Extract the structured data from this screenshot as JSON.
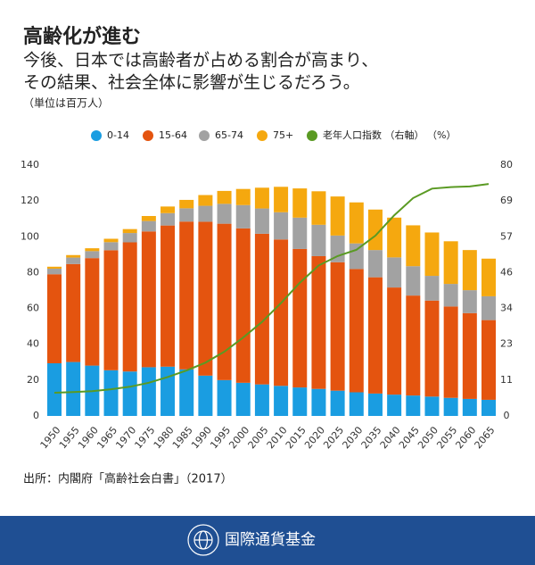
{
  "chart_data": {
    "type": "bar",
    "stacked": true,
    "title": "高齢化が進む",
    "subtitle": [
      "今後、日本では高齢者が占める割合が高まり、",
      "その結果、社会全体に影響が生じるだろう。"
    ],
    "unit_note": "（単位は百万人）",
    "categories": [
      "1950",
      "1955",
      "1960",
      "1965",
      "1970",
      "1975",
      "1980",
      "1985",
      "1990",
      "1995",
      "2000",
      "2005",
      "2010",
      "2015",
      "2020",
      "2025",
      "2030",
      "2035",
      "2040",
      "2045",
      "2050",
      "2055",
      "2060",
      "2065"
    ],
    "series": [
      {
        "name": "0-14",
        "color": "#1a9de1",
        "values": [
          29.4,
          30.1,
          28.1,
          25.5,
          24.8,
          27.2,
          27.5,
          26.0,
          22.5,
          20.0,
          18.5,
          17.6,
          16.8,
          15.9,
          15.1,
          14.1,
          13.2,
          12.5,
          11.9,
          11.4,
          10.8,
          10.1,
          9.5,
          9.0
        ]
      },
      {
        "name": "15-64",
        "color": "#e4540f",
        "values": [
          49.7,
          54.7,
          60.0,
          67.0,
          72.1,
          75.8,
          78.8,
          82.5,
          85.9,
          87.3,
          86.2,
          84.1,
          81.7,
          77.3,
          74.1,
          71.7,
          68.8,
          64.9,
          59.8,
          55.8,
          53.6,
          51.0,
          47.9,
          44.5
        ]
      },
      {
        "name": "65-74",
        "color": "#a2a2a2",
        "values": [
          3.1,
          3.6,
          3.9,
          4.5,
          5.2,
          5.8,
          6.9,
          7.4,
          8.9,
          11.1,
          13.0,
          14.1,
          15.2,
          17.5,
          17.5,
          14.9,
          14.3,
          15.2,
          16.8,
          16.4,
          13.8,
          12.6,
          12.8,
          13.3
        ]
      },
      {
        "name": "75+",
        "color": "#f5a80f",
        "values": [
          1.1,
          1.4,
          1.6,
          1.9,
          2.2,
          2.8,
          3.7,
          4.7,
          6.0,
          7.2,
          9.0,
          11.6,
          14.2,
          16.3,
          18.7,
          21.8,
          22.9,
          22.6,
          22.2,
          22.8,
          24.2,
          23.8,
          22.4,
          21.0
        ]
      },
      {
        "name": "老年人口指数 （右軸） （%）",
        "type": "line",
        "axis": "y2",
        "color": "#5a9a23",
        "values": [
          7.4,
          7.6,
          7.9,
          8.5,
          9.3,
          10.6,
          12.4,
          14.5,
          17.0,
          20.5,
          25.0,
          30.0,
          36.0,
          42.5,
          48.0,
          51.0,
          53.0,
          57.5,
          64.0,
          69.5,
          72.5,
          73.0,
          73.2,
          74.0
        ]
      }
    ],
    "ylim": [
      0,
      140
    ],
    "yticks": [
      0,
      20,
      40,
      60,
      80,
      100,
      120,
      140
    ],
    "y2lim": [
      0,
      80
    ],
    "y2ticks": [
      0,
      {
        "value": 11.43,
        "label": "11"
      },
      {
        "value": 22.86,
        "label": "23"
      },
      {
        "value": 34.29,
        "label": "34"
      },
      {
        "value": 45.71,
        "label": "46"
      },
      {
        "value": 57.14,
        "label": "57"
      },
      {
        "value": 68.57,
        "label": "69"
      },
      80
    ],
    "grid": false,
    "legend": "top",
    "source": "出所：内閣府「高齢社会白書」（2017）"
  },
  "footer": {
    "org": "国際通貨基金"
  }
}
